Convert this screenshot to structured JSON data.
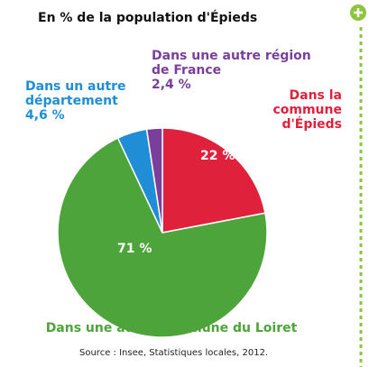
{
  "chart_data": {
    "type": "pie",
    "title": "En % de la population d'Épieds",
    "categories": [
      "Dans la commune d'Épieds",
      "Dans une autre commune du Loiret",
      "Dans un autre département",
      "Dans une autre région de France"
    ],
    "values": [
      22,
      71,
      4.6,
      2.4
    ],
    "value_labels": [
      "22 %",
      "71 %",
      "4,6 %",
      "2,4 %"
    ],
    "colors": [
      "#e0213b",
      "#4ca43a",
      "#1f8ed6",
      "#7b3f9b"
    ],
    "source": "Source : Insee, Statistiques locales, 2012."
  }
}
